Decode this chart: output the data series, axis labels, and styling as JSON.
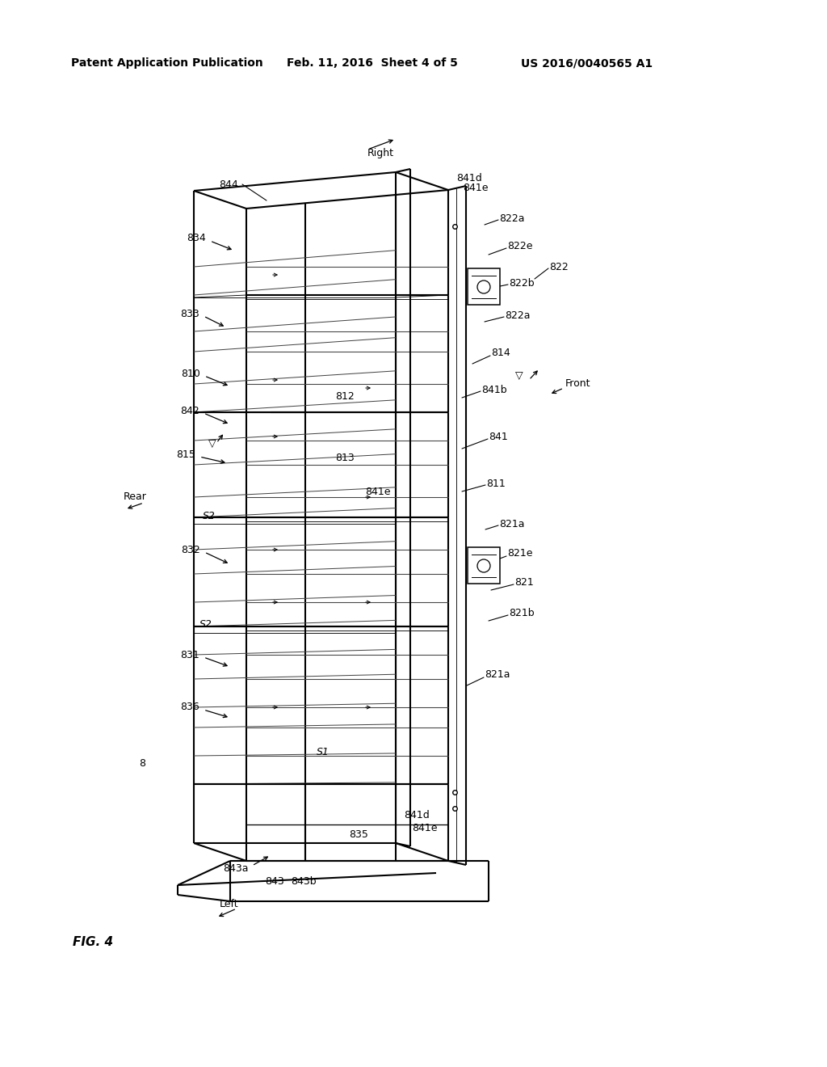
{
  "bg_color": "#ffffff",
  "line_color": "#000000",
  "header_left": "Patent Application Publication",
  "header_mid": "Feb. 11, 2016  Sheet 4 of 5",
  "header_right": "US 2016/0040565 A1",
  "fig_label": "FIG. 4"
}
